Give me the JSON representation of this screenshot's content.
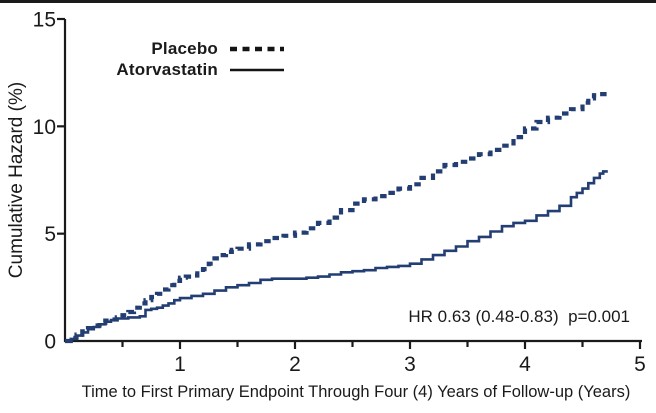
{
  "colors": {
    "curve": "#233e73",
    "axis": "#1a1a1a",
    "text": "#1a1a1a",
    "legend_marker": "#141414",
    "background": "#ffffff"
  },
  "chart_data": {
    "type": "line",
    "subtype": "step-cumulative-hazard",
    "title": "",
    "xlabel": "Time to First Primary Endpoint Through Four (4) Years of Follow-up (Years)",
    "ylabel": "Cumulative Hazard (%)",
    "annotation": "HR 0.63 (0.48-0.83)  p=0.001",
    "xlim": [
      0,
      5
    ],
    "ylim": [
      0,
      15
    ],
    "x_major_ticks": [
      1,
      2,
      3,
      4,
      5
    ],
    "x_minor_ticks": [
      0.5,
      1.5,
      2.5,
      3.5,
      4.5
    ],
    "y_major_ticks": [
      0,
      5,
      10,
      15
    ],
    "grid": false,
    "legend_position": "inside-top-left",
    "series": [
      {
        "name": "Placebo",
        "style": "dashed",
        "points": [
          [
            0,
            0
          ],
          [
            0.05,
            0.15
          ],
          [
            0.1,
            0.3
          ],
          [
            0.15,
            0.45
          ],
          [
            0.2,
            0.6
          ],
          [
            0.25,
            0.72
          ],
          [
            0.3,
            0.85
          ],
          [
            0.35,
            0.95
          ],
          [
            0.4,
            1.0
          ],
          [
            0.45,
            1.1
          ],
          [
            0.5,
            1.2
          ],
          [
            0.55,
            1.35
          ],
          [
            0.6,
            1.55
          ],
          [
            0.65,
            1.75
          ],
          [
            0.7,
            1.9
          ],
          [
            0.75,
            2.05
          ],
          [
            0.8,
            2.2
          ],
          [
            0.85,
            2.4
          ],
          [
            0.9,
            2.6
          ],
          [
            0.95,
            2.8
          ],
          [
            1.0,
            2.95
          ],
          [
            1.05,
            3.0
          ],
          [
            1.1,
            3.05
          ],
          [
            1.15,
            3.15
          ],
          [
            1.2,
            3.35
          ],
          [
            1.25,
            3.6
          ],
          [
            1.3,
            3.85
          ],
          [
            1.35,
            4.0
          ],
          [
            1.4,
            4.15
          ],
          [
            1.45,
            4.25
          ],
          [
            1.5,
            4.3
          ],
          [
            1.6,
            4.5
          ],
          [
            1.7,
            4.65
          ],
          [
            1.8,
            4.8
          ],
          [
            1.9,
            4.9
          ],
          [
            2.0,
            5.05
          ],
          [
            2.1,
            5.25
          ],
          [
            2.2,
            5.5
          ],
          [
            2.3,
            5.75
          ],
          [
            2.4,
            6.1
          ],
          [
            2.5,
            6.4
          ],
          [
            2.6,
            6.6
          ],
          [
            2.7,
            6.75
          ],
          [
            2.8,
            6.9
          ],
          [
            2.9,
            7.1
          ],
          [
            3.0,
            7.3
          ],
          [
            3.1,
            7.6
          ],
          [
            3.2,
            7.9
          ],
          [
            3.3,
            8.2
          ],
          [
            3.4,
            8.35
          ],
          [
            3.5,
            8.5
          ],
          [
            3.6,
            8.7
          ],
          [
            3.7,
            8.9
          ],
          [
            3.8,
            9.1
          ],
          [
            3.9,
            9.5
          ],
          [
            4.0,
            9.9
          ],
          [
            4.1,
            10.2
          ],
          [
            4.2,
            10.4
          ],
          [
            4.3,
            10.6
          ],
          [
            4.4,
            10.8
          ],
          [
            4.5,
            11.1
          ],
          [
            4.55,
            11.3
          ],
          [
            4.6,
            11.45
          ],
          [
            4.65,
            11.5
          ],
          [
            4.72,
            11.5
          ]
        ]
      },
      {
        "name": "Atorvastatin",
        "style": "solid",
        "points": [
          [
            0,
            0
          ],
          [
            0.05,
            0.1
          ],
          [
            0.1,
            0.25
          ],
          [
            0.15,
            0.4
          ],
          [
            0.2,
            0.55
          ],
          [
            0.25,
            0.65
          ],
          [
            0.3,
            0.78
          ],
          [
            0.35,
            0.9
          ],
          [
            0.4,
            0.98
          ],
          [
            0.45,
            1.05
          ],
          [
            0.55,
            1.1
          ],
          [
            0.65,
            1.15
          ],
          [
            0.7,
            1.45
          ],
          [
            0.75,
            1.5
          ],
          [
            0.8,
            1.55
          ],
          [
            0.85,
            1.65
          ],
          [
            0.9,
            1.75
          ],
          [
            0.95,
            1.9
          ],
          [
            1.0,
            2.0
          ],
          [
            1.1,
            2.1
          ],
          [
            1.2,
            2.2
          ],
          [
            1.3,
            2.35
          ],
          [
            1.4,
            2.5
          ],
          [
            1.5,
            2.6
          ],
          [
            1.6,
            2.7
          ],
          [
            1.7,
            2.85
          ],
          [
            1.8,
            2.9
          ],
          [
            2.1,
            2.95
          ],
          [
            2.2,
            3.0
          ],
          [
            2.3,
            3.1
          ],
          [
            2.4,
            3.2
          ],
          [
            2.5,
            3.25
          ],
          [
            2.6,
            3.3
          ],
          [
            2.7,
            3.4
          ],
          [
            2.8,
            3.45
          ],
          [
            2.9,
            3.5
          ],
          [
            3.0,
            3.6
          ],
          [
            3.1,
            3.8
          ],
          [
            3.2,
            4.0
          ],
          [
            3.3,
            4.2
          ],
          [
            3.4,
            4.4
          ],
          [
            3.5,
            4.65
          ],
          [
            3.6,
            4.85
          ],
          [
            3.7,
            5.1
          ],
          [
            3.8,
            5.35
          ],
          [
            3.9,
            5.5
          ],
          [
            4.0,
            5.6
          ],
          [
            4.1,
            5.85
          ],
          [
            4.2,
            6.05
          ],
          [
            4.3,
            6.3
          ],
          [
            4.4,
            6.7
          ],
          [
            4.45,
            6.9
          ],
          [
            4.5,
            7.1
          ],
          [
            4.55,
            7.35
          ],
          [
            4.6,
            7.6
          ],
          [
            4.65,
            7.8
          ],
          [
            4.68,
            7.9
          ],
          [
            4.72,
            7.9
          ]
        ]
      }
    ]
  }
}
